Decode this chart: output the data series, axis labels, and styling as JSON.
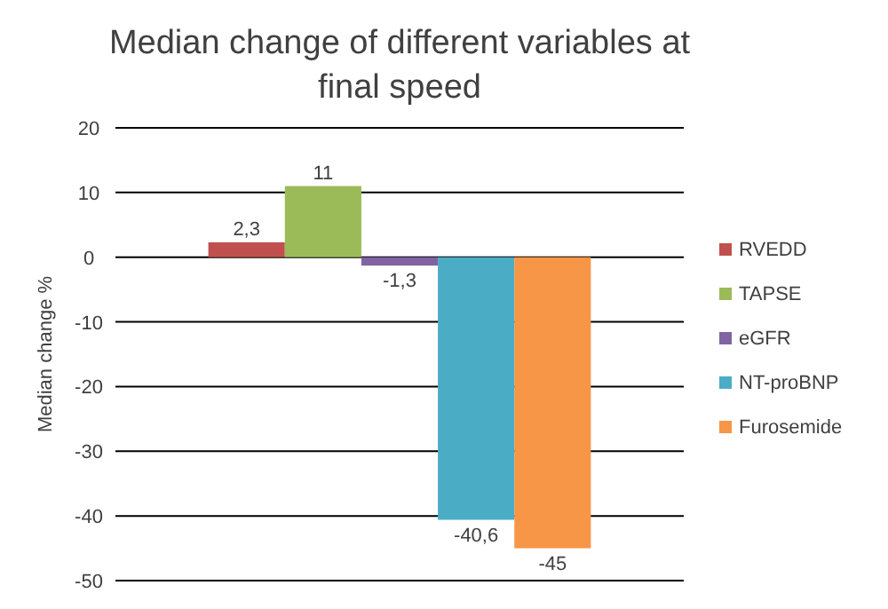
{
  "chart_data": {
    "type": "bar",
    "title": "Median change of different variables at final speed",
    "ylabel": "Median change %",
    "categories": [
      null
    ],
    "series": [
      {
        "name": "RVEDD",
        "color": "#c0504d",
        "values": [
          2.3
        ],
        "value_labels": [
          "2,3"
        ]
      },
      {
        "name": "TAPSE",
        "color": "#9bbb59",
        "values": [
          11
        ],
        "value_labels": [
          "11"
        ]
      },
      {
        "name": "eGFR",
        "color": "#8064a2",
        "values": [
          -1.3
        ],
        "value_labels": [
          "-1,3"
        ]
      },
      {
        "name": "NT-proBNP",
        "color": "#4bacc6",
        "values": [
          -40.6
        ],
        "value_labels": [
          "-40,6"
        ]
      },
      {
        "name": "Furosemide",
        "color": "#f79646",
        "values": [
          -45
        ],
        "value_labels": [
          "-45"
        ]
      }
    ],
    "ylim": [
      -50,
      20
    ],
    "yticks": [
      -50,
      -40,
      -30,
      -20,
      -10,
      0,
      10,
      20
    ],
    "grid": "y",
    "legend": "right"
  }
}
